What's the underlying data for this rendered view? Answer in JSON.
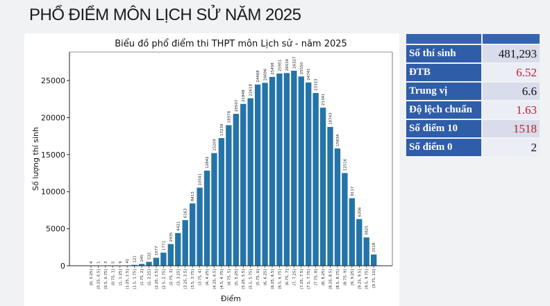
{
  "page_title": "PHỔ ĐIỂM MÔN LỊCH SỬ NĂM 2025",
  "stats": [
    {
      "label": "Số thí sinh",
      "value": "481,293",
      "highlight": false
    },
    {
      "label": "ĐTB",
      "value": "6.52",
      "highlight": true
    },
    {
      "label": "Trung vị",
      "value": "6.6",
      "highlight": false
    },
    {
      "label": "Độ lệch chuẩn",
      "value": "1.63",
      "highlight": true
    },
    {
      "label": "Số điểm 10",
      "value": "1518",
      "highlight": true
    },
    {
      "label": "Số điểm 0",
      "value": "2",
      "highlight": false
    }
  ],
  "chart_data": {
    "type": "bar",
    "title": "Biểu đồ phổ điểm thi THPT môn Lịch sử - năm 2025",
    "xlabel": "Điểm",
    "ylabel": "Số lượng thí sinh",
    "ylim": [
      0,
      28850
    ],
    "yticks": [
      0,
      5000,
      10000,
      15000,
      20000,
      25000
    ],
    "bar_color": "#2474a8",
    "grid": false,
    "categories": [
      "[0, 0.25]",
      "(0.25, 0.5]",
      "(0.5, 0.75]",
      "(0.75, 1]",
      "(1, 1.25]",
      "(1.25, 1.5]",
      "(1.5, 1.75]",
      "(1.75, 2]",
      "(2, 2.25]",
      "(2.25, 2.5]",
      "(2.5, 2.75]",
      "(2.75, 3]",
      "(3, 3.25]",
      "(3.25, 3.5]",
      "(3.5, 3.75]",
      "(3.75, 4]",
      "(4, 4.25]",
      "(4.25, 4.5]",
      "(4.5, 4.75]",
      "(4.75, 5]",
      "(5, 5.25]",
      "(5.25, 5.5]",
      "(5.5, 5.75]",
      "(5.75, 6]",
      "(6, 6.25]",
      "(6.25, 6.5]",
      "(6.5, 6.75]",
      "(6.75, 7]",
      "(7, 7.25]",
      "(7.25, 7.5]",
      "(7.5, 7.75]",
      "(7.75, 8]",
      "(8, 8.25]",
      "(8.25, 8.5]",
      "(8.5, 8.75]",
      "(8.75, 9]",
      "(9, 9.25]",
      "(9.25, 9.5]",
      "(9.5, 9.75]",
      "(9.75, 10]"
    ],
    "values": [
      4,
      1,
      3,
      5,
      9,
      41,
      121,
      245,
      532,
      1077,
      1771,
      2935,
      4421,
      6163,
      8413,
      10541,
      12842,
      15209,
      17239,
      18978,
      20507,
      21848,
      22618,
      24468,
      24696,
      25498,
      25951,
      26016,
      26327,
      25550,
      24741,
      23323,
      21341,
      18743,
      15834,
      12516,
      9117,
      6306,
      3825,
      1518
    ]
  }
}
